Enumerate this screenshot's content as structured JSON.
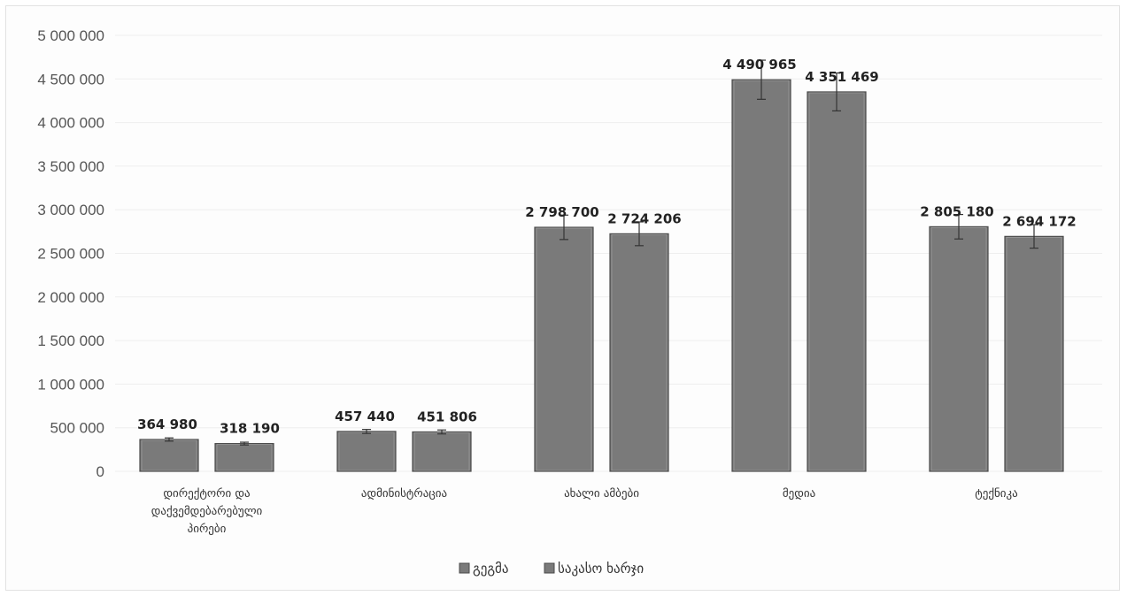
{
  "chart_data": {
    "type": "bar",
    "categories": [
      [
        "დირექტორი და",
        "დაქვემდებარებული",
        "პირები"
      ],
      [
        "ადმინისტრაცია"
      ],
      [
        "ახალი ამბები"
      ],
      [
        "მედია"
      ],
      [
        "ტექნიკა"
      ]
    ],
    "series": [
      {
        "name": "გეგმა",
        "values": [
          364980,
          457440,
          2798700,
          4490965,
          2805180
        ],
        "labels": [
          "364 980",
          "457 440",
          "2 798 700",
          "4 490 965",
          "2 805 180"
        ]
      },
      {
        "name": "საკასო ხარჯი",
        "values": [
          318190,
          451806,
          2724206,
          4351469,
          2694172
        ],
        "labels": [
          "318 190",
          "451 806",
          "2 724 206",
          "4 351 469",
          "2 694 172"
        ]
      }
    ],
    "ylim": [
      0,
      5000000
    ],
    "y_ticks": [
      0,
      500000,
      1000000,
      1500000,
      2000000,
      2500000,
      3000000,
      3500000,
      4000000,
      4500000,
      5000000
    ],
    "y_tick_labels": [
      "0",
      "500 000",
      "1 000 000",
      "1 500 000",
      "2 000 000",
      "2 500 000",
      "3 000 000",
      "3 500 000",
      "4 000 000",
      "4 500 000",
      "5 000 000"
    ],
    "error_bars": true,
    "grid": true,
    "legend_position": "bottom",
    "colors": {
      "bar_fill": "#7a7a7a",
      "bar_edge": "#4a4a4a",
      "error_bar": "#333333",
      "gridline": "#eeeeee"
    }
  }
}
